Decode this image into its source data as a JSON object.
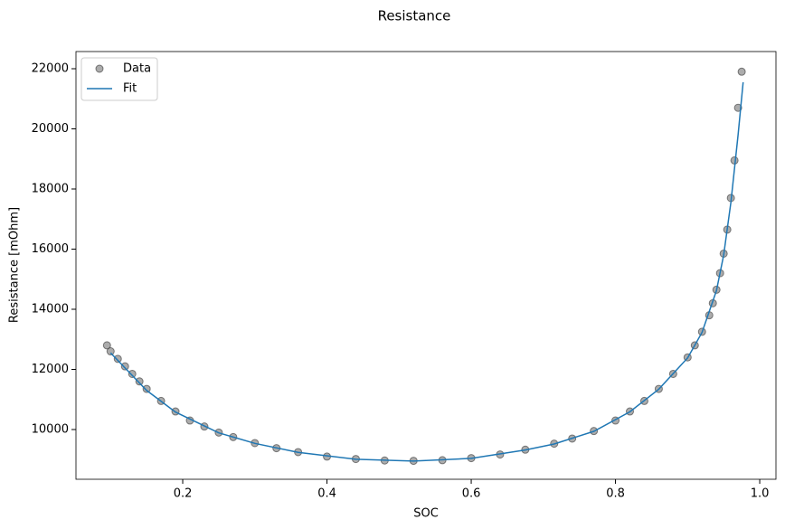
{
  "chart_data": {
    "type": "line",
    "title": "Resistance",
    "x_label": "SOC",
    "y_label": "Resistance [mOhm]",
    "xlim": [
      0.052,
      1.0225
    ],
    "ylim": [
      8346,
      22571
    ],
    "xticks": [
      0.2,
      0.4,
      0.6,
      0.8,
      {
        "value": 1.0,
        "label": "1.0"
      }
    ],
    "yticks": [
      10000,
      12000,
      14000,
      16000,
      18000,
      20000,
      22000
    ],
    "legend": "upper left",
    "series": [
      {
        "name": "Data",
        "style": "marker",
        "color": "#808080",
        "x": [
          0.095,
          0.1,
          0.11,
          0.12,
          0.13,
          0.14,
          0.15,
          0.17,
          0.19,
          0.21,
          0.23,
          0.25,
          0.27,
          0.3,
          0.33,
          0.36,
          0.4,
          0.44,
          0.48,
          0.52,
          0.56,
          0.6,
          0.64,
          0.675,
          0.715,
          0.74,
          0.77,
          0.8,
          0.82,
          0.84,
          0.86,
          0.88,
          0.9,
          0.91,
          0.92,
          0.93,
          0.935,
          0.94,
          0.945,
          0.95,
          0.955,
          0.96,
          0.965,
          0.97,
          0.975
        ],
        "values": [
          12800,
          12600,
          12350,
          12100,
          11850,
          11600,
          11350,
          10950,
          10600,
          10300,
          10100,
          9900,
          9750,
          9550,
          9380,
          9250,
          9100,
          9020,
          8970,
          8960,
          8980,
          9050,
          9170,
          9330,
          9530,
          9700,
          9950,
          10300,
          10600,
          10950,
          11350,
          11850,
          12400,
          12800,
          13250,
          13800,
          14200,
          14650,
          15200,
          15850,
          16650,
          17700,
          18950,
          20700,
          21900
        ]
      },
      {
        "name": "Fit",
        "style": "line",
        "color": "#1f77b4",
        "x": [
          0.1,
          0.12,
          0.15,
          0.19,
          0.25,
          0.3,
          0.36,
          0.44,
          0.52,
          0.6,
          0.675,
          0.715,
          0.77,
          0.82,
          0.86,
          0.9,
          0.92,
          0.94,
          0.95,
          0.96,
          0.97,
          0.977
        ],
        "values": [
          12550,
          12050,
          11300,
          10580,
          9890,
          9540,
          9240,
          9010,
          8950,
          9040,
          9320,
          9520,
          9940,
          10590,
          11340,
          12380,
          13230,
          14620,
          15800,
          17550,
          19800,
          21550
        ]
      }
    ]
  }
}
